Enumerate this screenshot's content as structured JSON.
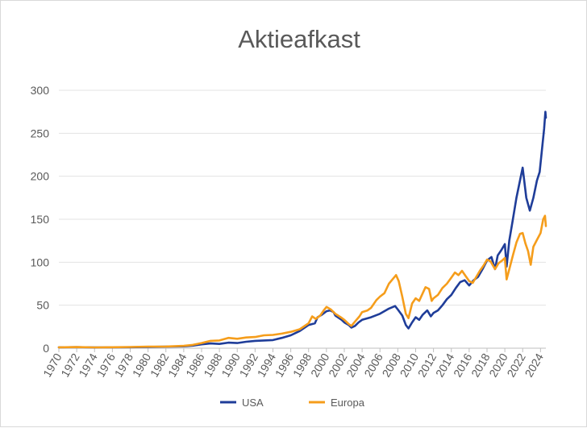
{
  "chart_data": {
    "type": "line",
    "title": "Aktieafkast",
    "xlabel": "",
    "ylabel": "",
    "xlim": [
      1970,
      2024.6
    ],
    "ylim": [
      0,
      300
    ],
    "y_ticks": [
      0,
      50,
      100,
      150,
      200,
      250,
      300
    ],
    "x_ticks": [
      "1970",
      "1972",
      "1974",
      "1976",
      "1978",
      "1980",
      "1982",
      "1984",
      "1986",
      "1988",
      "1990",
      "1992",
      "1994",
      "1996",
      "1998",
      "2000",
      "2002",
      "2004",
      "2006",
      "2008",
      "2010",
      "2012",
      "2014",
      "2016",
      "2018",
      "2020",
      "2022",
      "2024"
    ],
    "grid": "horizontal",
    "legend_position": "bottom",
    "series": [
      {
        "name": "USA",
        "color": "#1f3d99",
        "points": [
          [
            1970,
            1
          ],
          [
            1972,
            1.2
          ],
          [
            1974,
            0.8
          ],
          [
            1976,
            1
          ],
          [
            1978,
            1.1
          ],
          [
            1980,
            1.5
          ],
          [
            1982,
            1.8
          ],
          [
            1984,
            2.2
          ],
          [
            1985,
            3
          ],
          [
            1986,
            4.5
          ],
          [
            1987,
            5.5
          ],
          [
            1988,
            5
          ],
          [
            1989,
            6.5
          ],
          [
            1990,
            6
          ],
          [
            1991,
            7.5
          ],
          [
            1992,
            8.5
          ],
          [
            1993,
            9
          ],
          [
            1994,
            9.5
          ],
          [
            1995,
            12
          ],
          [
            1996,
            15
          ],
          [
            1997,
            20
          ],
          [
            1998,
            27
          ],
          [
            1998.7,
            29
          ],
          [
            1999,
            36
          ],
          [
            1999.5,
            39
          ],
          [
            2000,
            43
          ],
          [
            2000.4,
            44
          ],
          [
            2000.8,
            42
          ],
          [
            2001,
            38
          ],
          [
            2001.7,
            33
          ],
          [
            2002,
            30
          ],
          [
            2002.5,
            27
          ],
          [
            2002.8,
            24
          ],
          [
            2003.2,
            26
          ],
          [
            2003.6,
            30
          ],
          [
            2004,
            33
          ],
          [
            2005,
            36
          ],
          [
            2006,
            40
          ],
          [
            2007,
            46
          ],
          [
            2007.7,
            49
          ],
          [
            2008,
            45
          ],
          [
            2008.5,
            38
          ],
          [
            2008.9,
            27
          ],
          [
            2009.2,
            23
          ],
          [
            2009.6,
            30
          ],
          [
            2010,
            36
          ],
          [
            2010.4,
            33
          ],
          [
            2010.8,
            39
          ],
          [
            2011.3,
            44
          ],
          [
            2011.7,
            37
          ],
          [
            2012,
            41
          ],
          [
            2012.5,
            44
          ],
          [
            2013,
            50
          ],
          [
            2013.5,
            57
          ],
          [
            2014,
            62
          ],
          [
            2014.5,
            70
          ],
          [
            2015,
            77
          ],
          [
            2015.5,
            79
          ],
          [
            2016,
            73
          ],
          [
            2016.5,
            79
          ],
          [
            2017,
            83
          ],
          [
            2017.5,
            92
          ],
          [
            2018,
            102
          ],
          [
            2018.5,
            106
          ],
          [
            2018.9,
            92
          ],
          [
            2019.2,
            108
          ],
          [
            2019.6,
            114
          ],
          [
            2020,
            121
          ],
          [
            2020.2,
            95
          ],
          [
            2020.5,
            125
          ],
          [
            2020.9,
            150
          ],
          [
            2021.3,
            175
          ],
          [
            2021.6,
            190
          ],
          [
            2022,
            210
          ],
          [
            2022.4,
            175
          ],
          [
            2022.8,
            160
          ],
          [
            2023.2,
            175
          ],
          [
            2023.6,
            195
          ],
          [
            2023.9,
            205
          ],
          [
            2024.2,
            235
          ],
          [
            2024.4,
            255
          ],
          [
            2024.55,
            275
          ],
          [
            2024.6,
            268
          ]
        ]
      },
      {
        "name": "Europa",
        "color": "#f59d1b",
        "points": [
          [
            1970,
            1
          ],
          [
            1972,
            1.3
          ],
          [
            1974,
            0.9
          ],
          [
            1976,
            1.1
          ],
          [
            1978,
            1.4
          ],
          [
            1980,
            1.9
          ],
          [
            1982,
            2
          ],
          [
            1984,
            2.7
          ],
          [
            1985,
            3.8
          ],
          [
            1986,
            6
          ],
          [
            1987,
            8.5
          ],
          [
            1988,
            9
          ],
          [
            1989,
            12
          ],
          [
            1990,
            11
          ],
          [
            1991,
            12.5
          ],
          [
            1992,
            13
          ],
          [
            1993,
            15
          ],
          [
            1994,
            15.5
          ],
          [
            1995,
            17
          ],
          [
            1996,
            19
          ],
          [
            1997,
            22
          ],
          [
            1998,
            29
          ],
          [
            1998.4,
            37
          ],
          [
            1998.8,
            34
          ],
          [
            1999.3,
            38
          ],
          [
            1999.7,
            44
          ],
          [
            2000,
            48
          ],
          [
            2000.5,
            45
          ],
          [
            2001,
            40
          ],
          [
            2001.6,
            36
          ],
          [
            2002,
            33
          ],
          [
            2002.5,
            28
          ],
          [
            2002.8,
            26
          ],
          [
            2003.2,
            31
          ],
          [
            2003.7,
            37
          ],
          [
            2004,
            42
          ],
          [
            2004.6,
            44
          ],
          [
            2005,
            47
          ],
          [
            2005.6,
            56
          ],
          [
            2006,
            60
          ],
          [
            2006.5,
            64
          ],
          [
            2007,
            75
          ],
          [
            2007.4,
            80
          ],
          [
            2007.8,
            85
          ],
          [
            2008.1,
            78
          ],
          [
            2008.5,
            60
          ],
          [
            2008.9,
            40
          ],
          [
            2009.2,
            35
          ],
          [
            2009.6,
            52
          ],
          [
            2010,
            58
          ],
          [
            2010.4,
            55
          ],
          [
            2010.8,
            64
          ],
          [
            2011.1,
            71
          ],
          [
            2011.5,
            69
          ],
          [
            2011.8,
            55
          ],
          [
            2012,
            58
          ],
          [
            2012.5,
            62
          ],
          [
            2013,
            70
          ],
          [
            2013.5,
            75
          ],
          [
            2014,
            82
          ],
          [
            2014.4,
            88
          ],
          [
            2014.8,
            85
          ],
          [
            2015.2,
            90
          ],
          [
            2015.6,
            84
          ],
          [
            2016,
            78
          ],
          [
            2016.4,
            76
          ],
          [
            2016.8,
            83
          ],
          [
            2017.2,
            90
          ],
          [
            2017.6,
            96
          ],
          [
            2018,
            103
          ],
          [
            2018.4,
            101
          ],
          [
            2018.9,
            92
          ],
          [
            2019.3,
            99
          ],
          [
            2019.7,
            102
          ],
          [
            2020,
            105
          ],
          [
            2020.2,
            80
          ],
          [
            2020.6,
            96
          ],
          [
            2020.9,
            108
          ],
          [
            2021.3,
            123
          ],
          [
            2021.7,
            133
          ],
          [
            2022,
            134
          ],
          [
            2022.3,
            122
          ],
          [
            2022.6,
            113
          ],
          [
            2022.9,
            97
          ],
          [
            2023.2,
            118
          ],
          [
            2023.6,
            126
          ],
          [
            2024,
            134
          ],
          [
            2024.3,
            150
          ],
          [
            2024.5,
            154
          ],
          [
            2024.6,
            142
          ]
        ]
      }
    ]
  }
}
